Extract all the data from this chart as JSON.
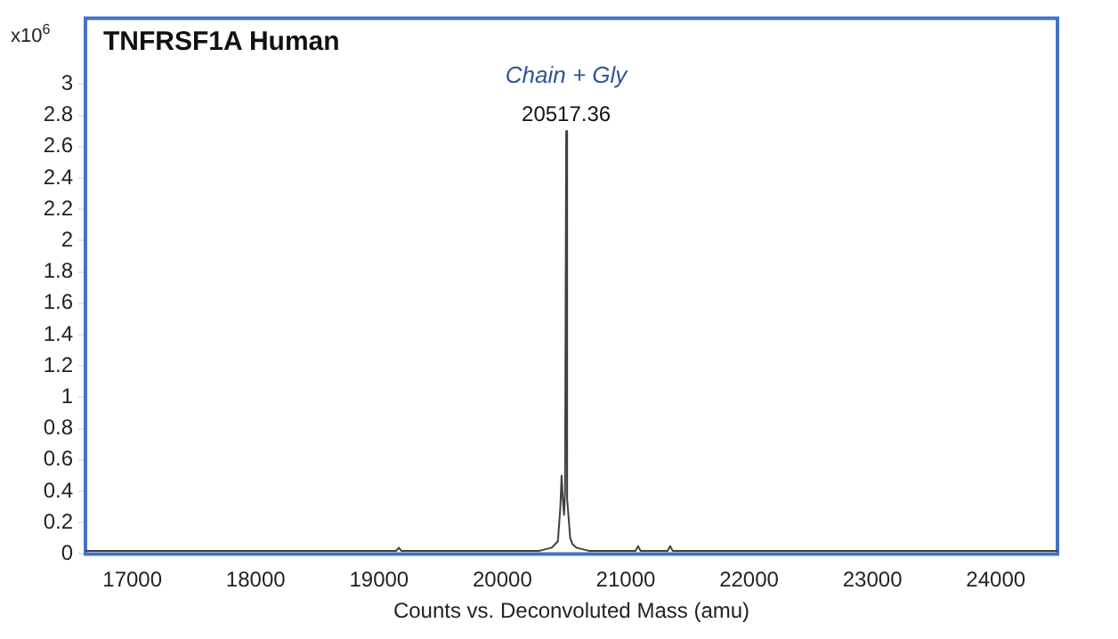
{
  "chart_data": {
    "type": "line",
    "title": "TNFRSF1A Human",
    "xlabel": "Counts vs. Deconvoluted Mass (amu)",
    "ylabel": "x10$^{6}$",
    "xlim": [
      16620,
      24500
    ],
    "xticks": [
      17000,
      18000,
      19000,
      20000,
      21000,
      22000,
      23000,
      24000
    ],
    "ylim": [
      0,
      3.42
    ],
    "yticks": [
      0,
      0.2,
      0.4,
      0.6,
      0.8,
      1,
      1.2,
      1.4,
      1.6,
      1.8,
      2,
      2.2,
      2.4,
      2.6,
      2.8,
      3
    ],
    "grid": false,
    "legend": false,
    "marker": "none",
    "line_style": "solid",
    "series": [
      {
        "color": "#404040",
        "x": [
          16620,
          17000,
          17500,
          18000,
          18500,
          19000,
          19140,
          19160,
          19180,
          19600,
          19900,
          20300,
          20400,
          20450,
          20470,
          20480,
          20490,
          20500,
          20508,
          20517.36,
          20525,
          20535,
          20550,
          20570,
          20600,
          20650,
          20700,
          20800,
          21080,
          21100,
          21120,
          21340,
          21360,
          21380,
          22000,
          23000,
          24000,
          24500
        ],
        "values": [
          0.02,
          0.02,
          0.02,
          0.02,
          0.02,
          0.02,
          0.02,
          0.04,
          0.02,
          0.02,
          0.02,
          0.02,
          0.04,
          0.08,
          0.3,
          0.5,
          0.35,
          0.25,
          0.4,
          2.7,
          0.35,
          0.25,
          0.1,
          0.06,
          0.04,
          0.03,
          0.02,
          0.02,
          0.02,
          0.05,
          0.02,
          0.02,
          0.05,
          0.02,
          0.02,
          0.02,
          0.02,
          0.02
        ]
      }
    ],
    "annotations": [
      "Chain + Gly",
      "20517.36"
    ]
  }
}
